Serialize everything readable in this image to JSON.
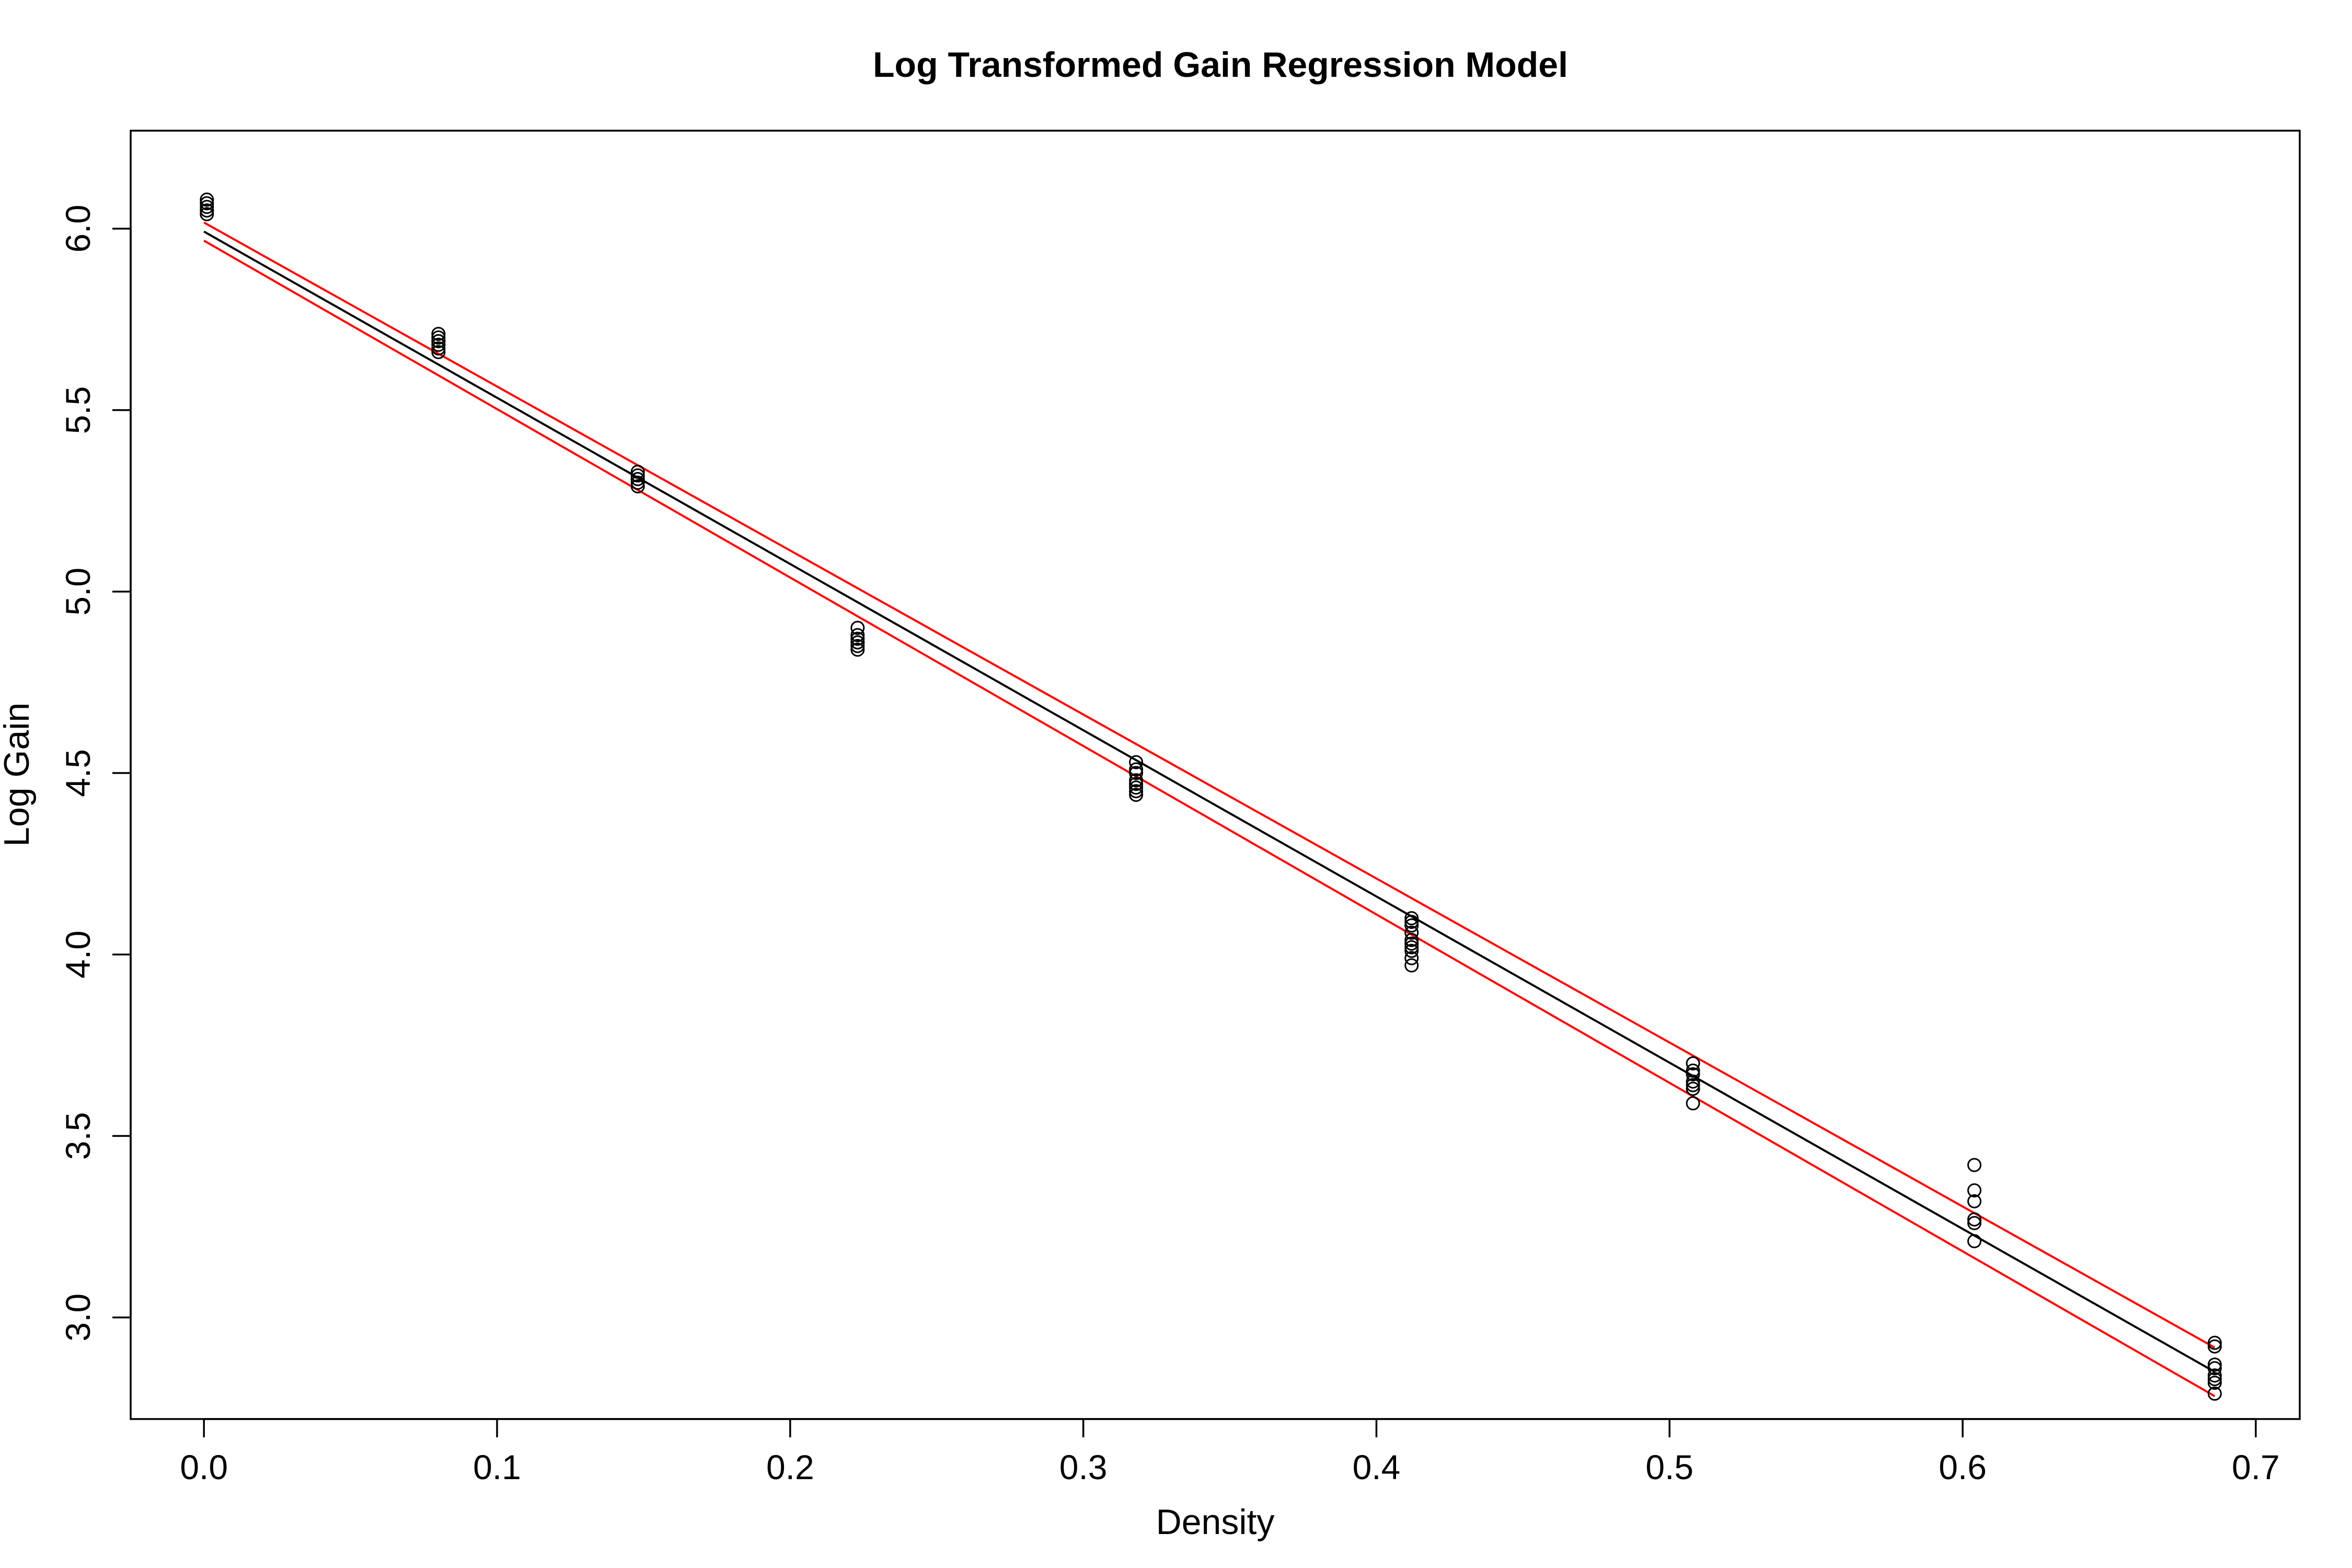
{
  "chart_data": {
    "type": "scatter",
    "title": "Log Transformed Gain Regression Model",
    "xlabel": "Density",
    "ylabel": "Log Gain",
    "xlim": [
      -0.025,
      0.715
    ],
    "ylim": [
      2.72,
      6.27
    ],
    "x_ticks": [
      0.0,
      0.1,
      0.2,
      0.3,
      0.4,
      0.5,
      0.6,
      0.7
    ],
    "x_tick_labels": [
      "0.0",
      "0.1",
      "0.2",
      "0.3",
      "0.4",
      "0.5",
      "0.6",
      "0.7"
    ],
    "y_ticks": [
      3.0,
      3.5,
      4.0,
      4.5,
      5.0,
      5.5,
      6.0
    ],
    "y_tick_labels": [
      "3.0",
      "3.5",
      "4.0",
      "4.5",
      "5.0",
      "5.5",
      "6.0"
    ],
    "grid": false,
    "points": {
      "x": [
        0.001,
        0.001,
        0.001,
        0.001,
        0.001,
        0.001,
        0.08,
        0.08,
        0.08,
        0.08,
        0.08,
        0.08,
        0.08,
        0.148,
        0.148,
        0.148,
        0.148,
        0.148,
        0.148,
        0.223,
        0.223,
        0.223,
        0.223,
        0.223,
        0.223,
        0.223,
        0.318,
        0.318,
        0.318,
        0.318,
        0.318,
        0.318,
        0.318,
        0.318,
        0.412,
        0.412,
        0.412,
        0.412,
        0.412,
        0.412,
        0.412,
        0.412,
        0.412,
        0.412,
        0.508,
        0.508,
        0.508,
        0.508,
        0.508,
        0.508,
        0.508,
        0.604,
        0.604,
        0.604,
        0.604,
        0.604,
        0.604,
        0.686,
        0.686,
        0.686,
        0.686,
        0.686,
        0.686,
        0.686,
        0.686
      ],
      "y": [
        6.08,
        6.07,
        6.06,
        6.05,
        6.05,
        6.04,
        5.71,
        5.7,
        5.69,
        5.69,
        5.68,
        5.67,
        5.66,
        5.33,
        5.32,
        5.31,
        5.31,
        5.3,
        5.29,
        4.9,
        4.88,
        4.87,
        4.86,
        4.86,
        4.85,
        4.84,
        4.53,
        4.51,
        4.5,
        4.48,
        4.47,
        4.46,
        4.45,
        4.44,
        4.1,
        4.09,
        4.08,
        4.06,
        4.04,
        4.03,
        4.02,
        4.01,
        3.99,
        3.97,
        3.7,
        3.68,
        3.67,
        3.65,
        3.64,
        3.63,
        3.59,
        3.42,
        3.35,
        3.32,
        3.27,
        3.26,
        3.21,
        2.93,
        2.92,
        2.87,
        2.86,
        2.84,
        2.83,
        2.82,
        2.79
      ]
    },
    "lines": [
      {
        "color": "#000000",
        "x": [
          0.0,
          0.686
        ],
        "y": [
          5.992,
          2.85
        ]
      },
      {
        "color": "#ff0000",
        "x": [
          0.0,
          0.686
        ],
        "y": [
          6.017,
          2.917
        ]
      },
      {
        "color": "#ff0000",
        "x": [
          0.0,
          0.686
        ],
        "y": [
          5.967,
          2.783
        ]
      }
    ]
  }
}
